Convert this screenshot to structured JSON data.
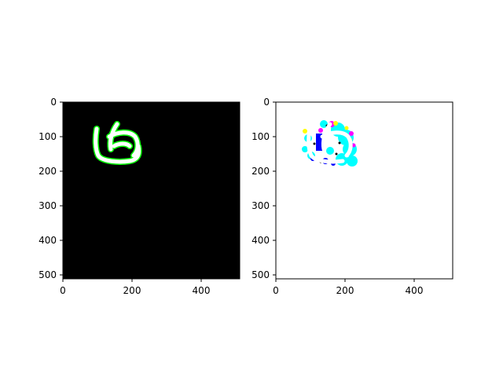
{
  "figure": {
    "background": "#ffffff",
    "panels": [
      {
        "id": "left",
        "description_kind": "binary mask image",
        "background_color": "#000000",
        "xticks": [
          "0",
          "200",
          "400"
        ],
        "yticks": [
          "0",
          "100",
          "200",
          "300",
          "400",
          "500"
        ],
        "x_range": [
          0,
          512
        ],
        "y_range": [
          0,
          512
        ],
        "y_inverted": true,
        "stroke_colors": {
          "outline": "#00ff00",
          "fill": "#ffffff"
        }
      },
      {
        "id": "right",
        "description_kind": "colored overlay image",
        "background_color": "#ffffff",
        "xticks": [
          "0",
          "200",
          "400"
        ],
        "yticks": [
          "0",
          "100",
          "200",
          "300",
          "400",
          "500"
        ],
        "x_range": [
          0,
          512
        ],
        "y_range": [
          0,
          512
        ],
        "y_inverted": true,
        "colors": [
          "#00ffff",
          "#0000ff",
          "#ff00ff",
          "#ffff00",
          "#000000"
        ]
      }
    ]
  }
}
